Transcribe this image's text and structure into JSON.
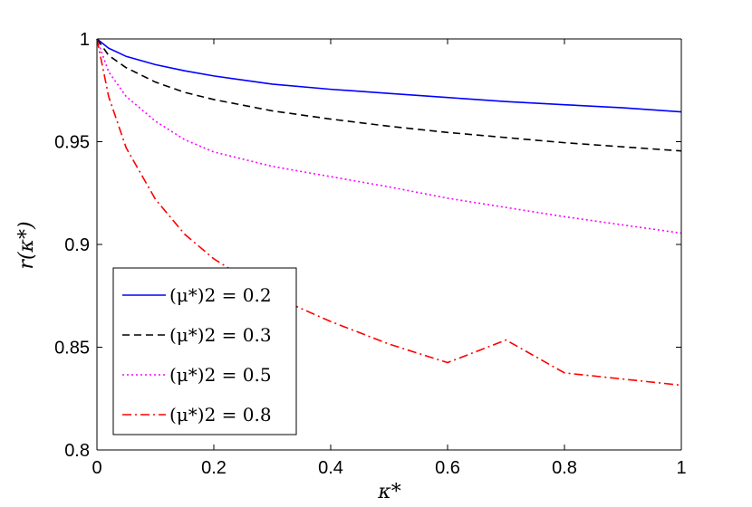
{
  "chart_data": {
    "type": "line",
    "xlabel": "κ*",
    "ylabel": "r(κ*)",
    "xlim": [
      0,
      1
    ],
    "ylim": [
      0.8,
      1
    ],
    "xticks": [
      "0",
      "0.2",
      "0.4",
      "0.6",
      "0.8",
      "1"
    ],
    "yticks": [
      "0.8",
      "0.85",
      "0.9",
      "0.95",
      "1"
    ],
    "grid": false,
    "legend_position": "bottom-left",
    "x": [
      0,
      0.02,
      0.05,
      0.1,
      0.15,
      0.2,
      0.3,
      0.4,
      0.5,
      0.6,
      0.7,
      0.8,
      0.9,
      1.0
    ],
    "series": [
      {
        "name": "(μ*)2 = 0.2",
        "color": "#0000ff",
        "dash": "solid",
        "values": [
          1.0,
          0.9955,
          0.9915,
          0.9875,
          0.9845,
          0.982,
          0.978,
          0.9755,
          0.9735,
          0.9715,
          0.9695,
          0.968,
          0.9665,
          0.9645
        ]
      },
      {
        "name": "(μ*)2 = 0.3",
        "color": "#000000",
        "dash": "dashed",
        "values": [
          1.0,
          0.992,
          0.986,
          0.979,
          0.974,
          0.9705,
          0.965,
          0.961,
          0.9575,
          0.9545,
          0.952,
          0.9495,
          0.9475,
          0.9455
        ]
      },
      {
        "name": "(μ*)2 = 0.5",
        "color": "#ff00ff",
        "dash": "dotted",
        "values": [
          1.0,
          0.984,
          0.972,
          0.96,
          0.951,
          0.945,
          0.938,
          0.933,
          0.928,
          0.9225,
          0.918,
          0.9135,
          0.9095,
          0.9055
        ]
      },
      {
        "name": "(μ*)2 = 0.8",
        "color": "#ff0000",
        "dash": "dashdot",
        "values": [
          1.0,
          0.972,
          0.947,
          0.922,
          0.905,
          0.893,
          0.875,
          0.8625,
          0.8515,
          0.8425,
          0.8535,
          0.8375,
          0.8345,
          0.8315
        ]
      }
    ]
  }
}
